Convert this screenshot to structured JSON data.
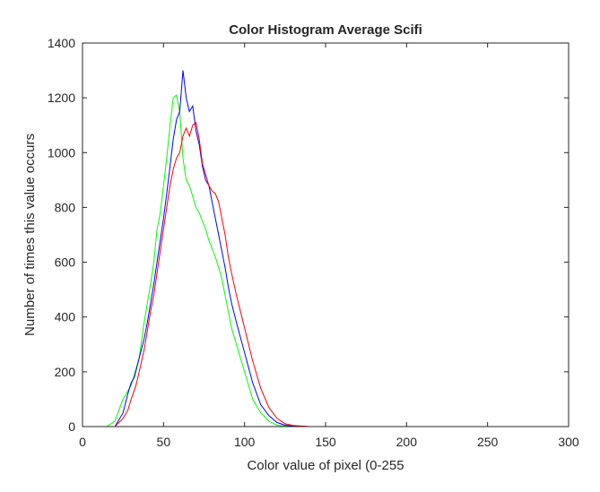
{
  "chart_data": {
    "type": "line",
    "title": "Color Histogram Average Scifi",
    "xlabel": "Color value of pixel (0-255",
    "ylabel": "Number of times this value occurs",
    "xlim": [
      0,
      300
    ],
    "ylim": [
      0,
      1400
    ],
    "xticks": [
      0,
      50,
      100,
      150,
      200,
      250,
      300
    ],
    "yticks": [
      0,
      200,
      400,
      600,
      800,
      1000,
      1200,
      1400
    ],
    "grid": false,
    "legend": "none",
    "series": [
      {
        "color": "#00ff00",
        "x": [
          0,
          15,
          20,
          25,
          30,
          35,
          38,
          40,
          42,
          44,
          46,
          48,
          50,
          52,
          54,
          56,
          58,
          60,
          62,
          64,
          66,
          68,
          70,
          72,
          74,
          76,
          78,
          80,
          82,
          84,
          86,
          88,
          90,
          92,
          95,
          100,
          105,
          110,
          115,
          120,
          125,
          130,
          140,
          150,
          200,
          250
        ],
        "y": [
          0,
          0,
          20,
          100,
          150,
          250,
          380,
          450,
          520,
          600,
          720,
          780,
          880,
          980,
          1100,
          1200,
          1210,
          1150,
          980,
          900,
          880,
          840,
          800,
          780,
          750,
          720,
          680,
          650,
          620,
          580,
          540,
          480,
          420,
          360,
          300,
          200,
          100,
          50,
          20,
          5,
          2,
          0,
          0,
          0,
          0,
          0
        ]
      },
      {
        "color": "#0000ff",
        "x": [
          0,
          20,
          25,
          28,
          30,
          32,
          35,
          38,
          40,
          42,
          44,
          46,
          48,
          50,
          52,
          54,
          56,
          58,
          60,
          62,
          64,
          66,
          68,
          70,
          72,
          74,
          76,
          78,
          80,
          82,
          84,
          86,
          88,
          90,
          92,
          95,
          100,
          105,
          110,
          115,
          120,
          125,
          130,
          140,
          150,
          200,
          250
        ],
        "y": [
          0,
          0,
          50,
          120,
          160,
          180,
          250,
          320,
          380,
          450,
          520,
          600,
          680,
          760,
          850,
          950,
          1050,
          1120,
          1150,
          1300,
          1200,
          1150,
          1170,
          1080,
          1030,
          950,
          900,
          880,
          820,
          760,
          700,
          640,
          580,
          510,
          450,
          380,
          270,
          160,
          80,
          40,
          15,
          5,
          2,
          0,
          0,
          0,
          0
        ]
      },
      {
        "color": "#ff0000",
        "x": [
          0,
          20,
          25,
          28,
          30,
          33,
          35,
          38,
          40,
          42,
          44,
          46,
          48,
          50,
          52,
          54,
          56,
          58,
          60,
          62,
          64,
          66,
          68,
          70,
          72,
          74,
          76,
          78,
          80,
          82,
          84,
          86,
          88,
          90,
          92,
          95,
          100,
          105,
          110,
          115,
          120,
          125,
          130,
          140,
          150,
          200,
          250
        ],
        "y": [
          0,
          0,
          30,
          60,
          100,
          150,
          200,
          280,
          350,
          420,
          480,
          560,
          640,
          720,
          800,
          880,
          940,
          980,
          1000,
          1060,
          1090,
          1060,
          1100,
          1110,
          1050,
          960,
          920,
          880,
          860,
          850,
          820,
          760,
          700,
          620,
          560,
          480,
          360,
          240,
          140,
          70,
          30,
          10,
          4,
          0,
          0,
          0,
          0
        ]
      }
    ]
  }
}
